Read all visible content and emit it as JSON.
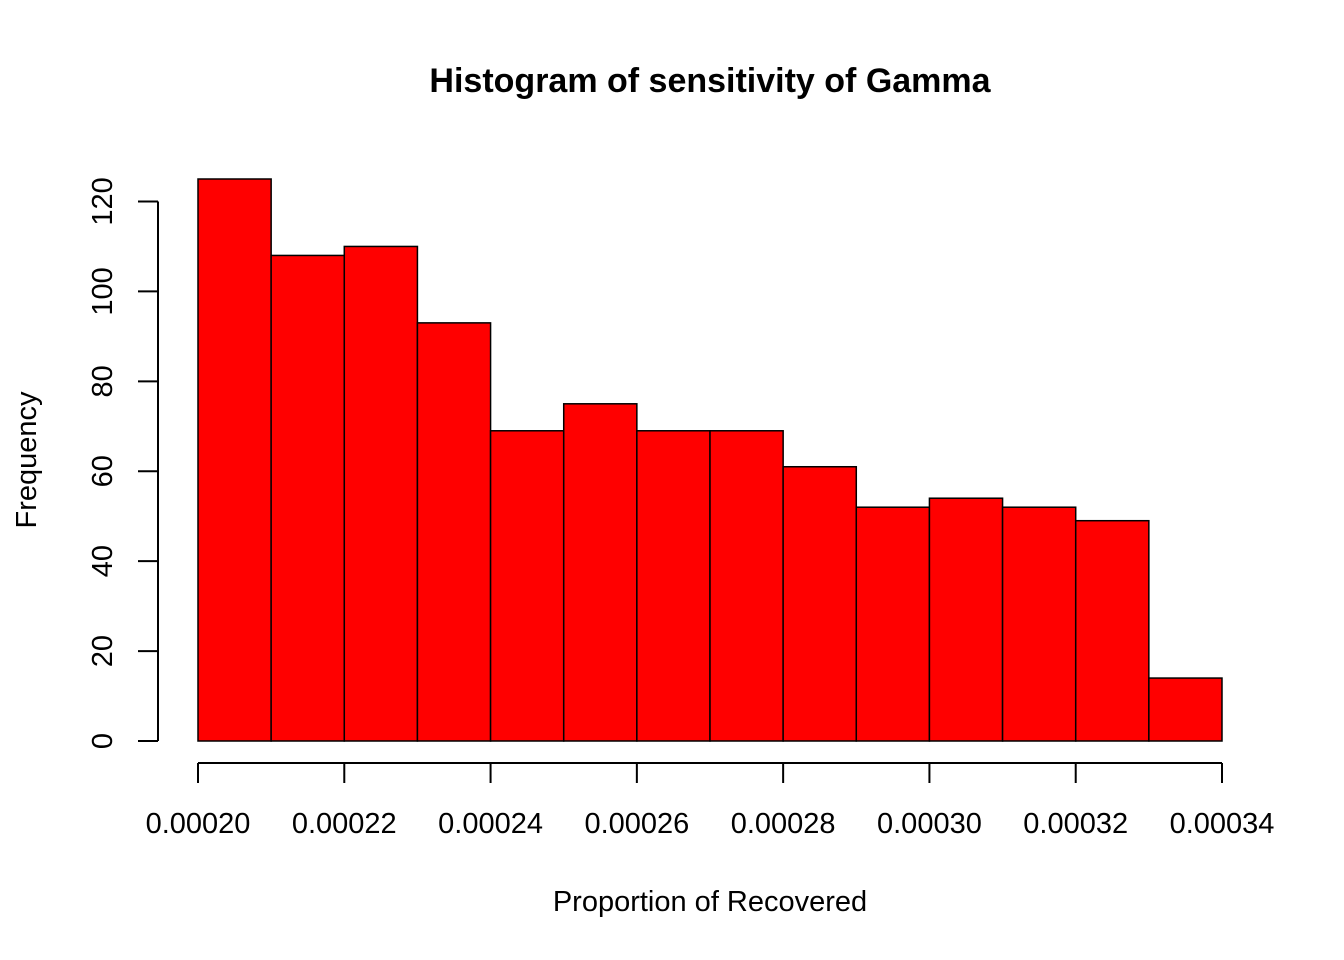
{
  "chart_data": {
    "type": "bar",
    "title": "Histogram of sensitivity of Gamma",
    "xlabel": "Proportion of Recovered",
    "ylabel": "Frequency",
    "bin_edges": [
      0.0002,
      0.00021,
      0.00022,
      0.00023,
      0.00024,
      0.00025,
      0.00026,
      0.00027,
      0.00028,
      0.00029,
      0.0003,
      0.00031,
      0.00032,
      0.00033,
      0.00034
    ],
    "values": [
      125,
      108,
      110,
      93,
      69,
      75,
      69,
      69,
      61,
      52,
      54,
      52,
      49,
      14
    ],
    "xlim": [
      0.0002,
      0.00034
    ],
    "ylim": [
      0,
      125
    ],
    "x_ticks": [
      0.0002,
      0.00022,
      0.00024,
      0.00026,
      0.00028,
      0.0003,
      0.00032,
      0.00034
    ],
    "x_tick_labels": [
      "0.00020",
      "0.00022",
      "0.00024",
      "0.00026",
      "0.00028",
      "0.00030",
      "0.00032",
      "0.00034"
    ],
    "y_ticks": [
      0,
      20,
      40,
      60,
      80,
      100,
      120
    ],
    "y_tick_labels": [
      "0",
      "20",
      "40",
      "60",
      "80",
      "100",
      "120"
    ],
    "bar_color": "#ff0000",
    "border_color": "#000000",
    "grid": false,
    "legend": "none"
  }
}
